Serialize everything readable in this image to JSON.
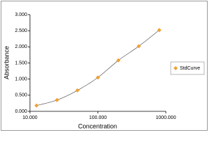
{
  "chart_data": {
    "type": "scatter",
    "x_label": "Concentration",
    "y_label": "Absorbance",
    "x": [
      12.5,
      25,
      50,
      100,
      200,
      400,
      800
    ],
    "series": [
      {
        "name": "StdCurve",
        "color": "#f0a030",
        "values": [
          0.18,
          0.35,
          0.65,
          1.05,
          1.58,
          2.02,
          2.52
        ]
      }
    ],
    "xlim": [
      10,
      1000
    ],
    "xscale": "log",
    "xticks": [
      {
        "value": 10,
        "label": "10.000"
      },
      {
        "value": 100,
        "label": "100.000"
      },
      {
        "value": 1000,
        "label": "1000.000"
      }
    ],
    "ylim": [
      0,
      3
    ],
    "yticks": [
      {
        "value": 0,
        "label": "0.000"
      },
      {
        "value": 0.5,
        "label": "0.500"
      },
      {
        "value": 1,
        "label": "1.000"
      },
      {
        "value": 1.5,
        "label": "1.500"
      },
      {
        "value": 2,
        "label": "2.000"
      },
      {
        "value": 2.5,
        "label": "2.500"
      },
      {
        "value": 3,
        "label": "3.000"
      }
    ],
    "fit_line": true,
    "legend": "right"
  }
}
